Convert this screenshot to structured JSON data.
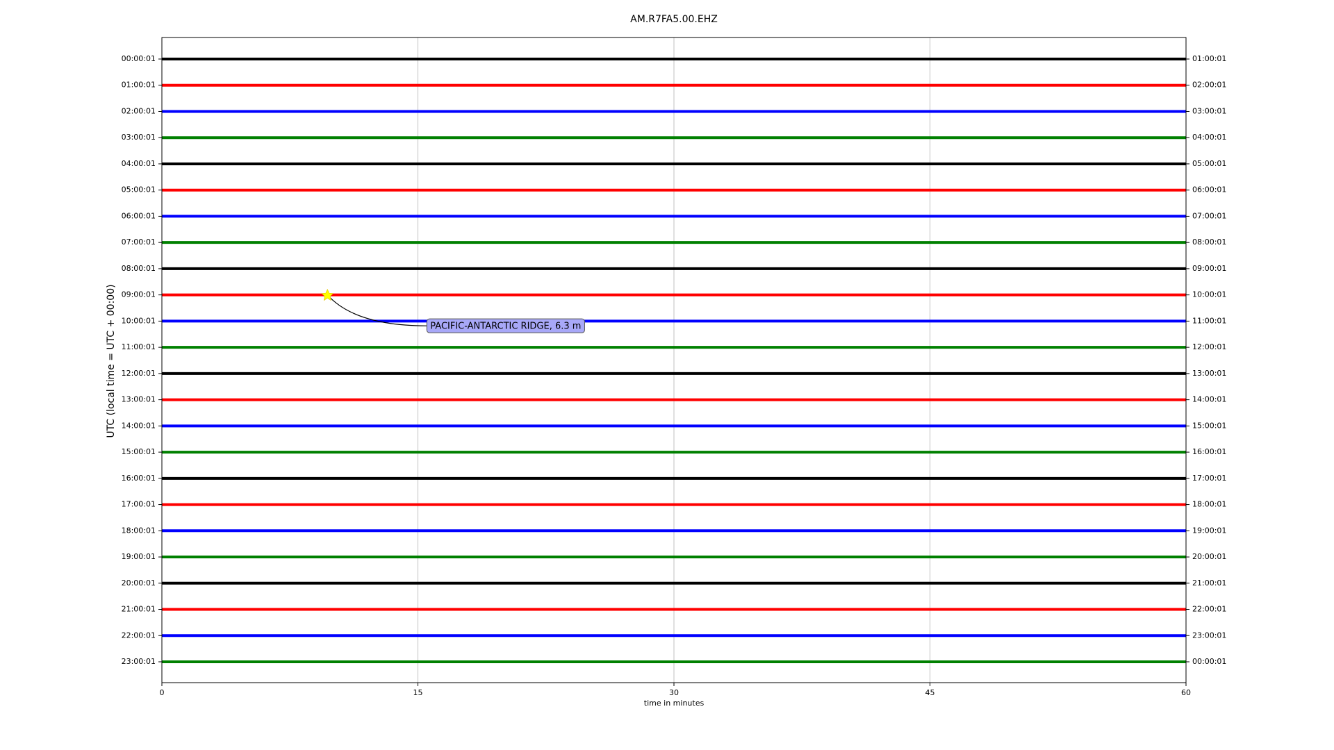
{
  "chart_data": {
    "type": "helicorder",
    "title": "AM.R7FA5.00.EHZ",
    "xlabel": "time in minutes",
    "ylabel": "UTC (local time = UTC + 00:00)",
    "xlim": [
      0,
      60
    ],
    "xticks": [
      0,
      15,
      30,
      45,
      60
    ],
    "grid": true,
    "categories": [
      "00:00:01",
      "01:00:01",
      "02:00:01",
      "03:00:01",
      "04:00:01",
      "05:00:01",
      "06:00:01",
      "07:00:01",
      "08:00:01",
      "09:00:01",
      "10:00:01",
      "11:00:01",
      "12:00:01",
      "13:00:01",
      "14:00:01",
      "15:00:01",
      "16:00:01",
      "17:00:01",
      "18:00:01",
      "19:00:01",
      "20:00:01",
      "21:00:01",
      "22:00:01",
      "23:00:01"
    ],
    "right_categories": [
      "01:00:01",
      "02:00:01",
      "03:00:01",
      "04:00:01",
      "05:00:01",
      "06:00:01",
      "07:00:01",
      "08:00:01",
      "09:00:01",
      "10:00:01",
      "11:00:01",
      "12:00:01",
      "13:00:01",
      "14:00:01",
      "15:00:01",
      "16:00:01",
      "17:00:01",
      "18:00:01",
      "19:00:01",
      "20:00:01",
      "21:00:01",
      "22:00:01",
      "23:00:01",
      "00:00:01"
    ],
    "colors": [
      "black",
      "red",
      "blue",
      "green"
    ],
    "event": {
      "label": "PACIFIC-ANTARCTIC RIDGE, 6.3 m",
      "row": 9,
      "x": 9.7
    }
  }
}
